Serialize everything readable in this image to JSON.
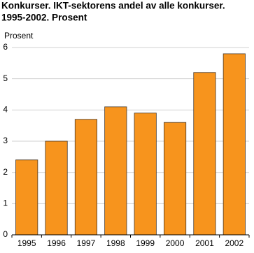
{
  "chart_data": {
    "type": "bar",
    "title": "Konkurser. IKT-sektorens andel av alle konkurser.",
    "subtitle": "1995-2002. Prosent",
    "y_label": "Prosent",
    "categories": [
      "1995",
      "1996",
      "1997",
      "1998",
      "1999",
      "2000",
      "2001",
      "2002"
    ],
    "values": [
      2.4,
      3.0,
      3.7,
      4.1,
      3.9,
      3.6,
      5.2,
      5.8
    ],
    "color": "#f7941d",
    "ylim": [
      0,
      6
    ],
    "yticks": [
      0,
      1,
      2,
      3,
      4,
      5,
      6
    ],
    "grid": true
  }
}
